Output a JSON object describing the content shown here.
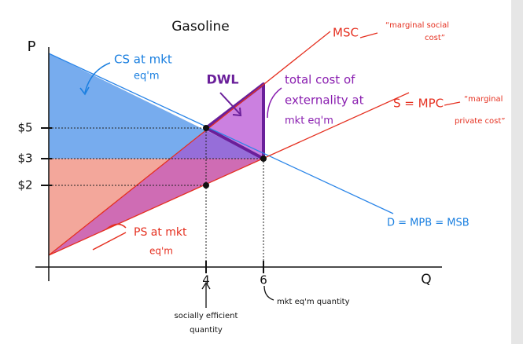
{
  "title": "Gasoline",
  "axes": {
    "y_label": "P",
    "x_label": "Q"
  },
  "price_ticks": [
    "$5",
    "$3",
    "$2"
  ],
  "quantity_ticks": [
    "4",
    "6"
  ],
  "curves": {
    "msc": {
      "label": "MSC",
      "note": [
        "“marginal social",
        "cost”"
      ]
    },
    "mpc": {
      "label": "S = MPC",
      "note": [
        "“marginal",
        "private cost”"
      ]
    },
    "demand": {
      "label": "D = MPB = MSB"
    }
  },
  "annotations": {
    "cs": [
      "CS at mkt",
      "eq'm"
    ],
    "dwl": "DWL",
    "externality": [
      "total cost of",
      "externality at",
      "mkt eq'm"
    ],
    "ps": [
      "PS at mkt",
      "eq'm"
    ],
    "efficient_q": [
      "socially efficient",
      "quantity"
    ],
    "market_q": "mkt eq'm quantity"
  }
}
